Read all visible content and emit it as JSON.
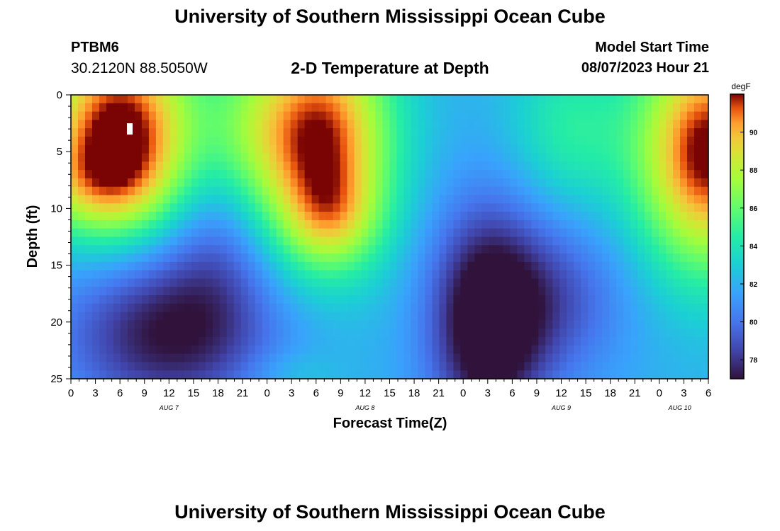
{
  "header": {
    "title": "University of Southern Mississippi Ocean Cube",
    "station_id": "PTBM6",
    "station_coords": "30.2120N  88.5050W",
    "chart_title": "2-D Temperature at Depth",
    "start_label": "Model Start Time",
    "start_value": "08/07/2023 Hour 21"
  },
  "footer": {
    "title": "University of Southern Mississippi Ocean Cube"
  },
  "chart_data": {
    "type": "heatmap",
    "title": "2-D Temperature at Depth",
    "xlabel": "Forecast Time(Z)",
    "ylabel": "Depth (ft)",
    "x_unit": "hours since Aug 7 00Z",
    "xlim": [
      0,
      78
    ],
    "ylim": [
      0,
      25
    ],
    "y_inverted": true,
    "x_ticks": [
      0,
      3,
      6,
      9,
      12,
      15,
      18,
      21,
      24,
      27,
      30,
      33,
      36,
      39,
      42,
      45,
      48,
      51,
      54,
      57,
      60,
      63,
      66,
      69,
      72,
      75,
      78
    ],
    "x_tick_labels": [
      "0",
      "3",
      "6",
      "9",
      "12",
      "15",
      "18",
      "21",
      "0",
      "3",
      "6",
      "9",
      "12",
      "15",
      "18",
      "21",
      "0",
      "3",
      "6",
      "9",
      "12",
      "15",
      "18",
      "21",
      "0",
      "3",
      "6"
    ],
    "y_ticks": [
      0,
      5,
      10,
      15,
      20,
      25
    ],
    "y_tick_labels": [
      "0",
      "5",
      "10",
      "15",
      "20",
      "25"
    ],
    "date_labels": [
      {
        "text": "AUG 7",
        "x": 12
      },
      {
        "text": "AUG 8",
        "x": 36
      },
      {
        "text": "AUG 9",
        "x": 60
      },
      {
        "text": "AUG 10",
        "x": 74.5
      }
    ],
    "colorbar": {
      "unit": "degF",
      "min": 77,
      "max": 92,
      "ticks": [
        78,
        80,
        82,
        84,
        86,
        88,
        90
      ],
      "tick_labels": [
        "78",
        "80",
        "82",
        "84",
        "86",
        "88",
        "90"
      ]
    },
    "marker": {
      "x": 7.2,
      "y": 3
    },
    "field_model": {
      "description": "approximate temperature (degF) field reconstructed from the image",
      "base": 82,
      "blobs": [
        {
          "x": 6,
          "y": 3,
          "amp": 10.5,
          "sx": 6.5,
          "sy": 6
        },
        {
          "x": 3,
          "y": 8,
          "amp": 3,
          "sx": 6,
          "sy": 3
        },
        {
          "x": 30.5,
          "y": 4,
          "amp": 10,
          "sx": 6,
          "sy": 7
        },
        {
          "x": 32,
          "y": 11,
          "amp": 3,
          "sx": 4,
          "sy": 3
        },
        {
          "x": 78,
          "y": 5,
          "amp": 10.5,
          "sx": 6,
          "sy": 7
        },
        {
          "x": 22,
          "y": 3,
          "amp": 2,
          "sx": 4,
          "sy": 5
        },
        {
          "x": 61,
          "y": 3,
          "amp": 2.5,
          "sx": 5,
          "sy": 5
        },
        {
          "x": 12,
          "y": 21,
          "amp": -5,
          "sx": 9,
          "sy": 5
        },
        {
          "x": 18,
          "y": 13,
          "amp": -2,
          "sx": 5,
          "sy": 5
        },
        {
          "x": 51,
          "y": 20,
          "amp": -6.5,
          "sx": 5,
          "sy": 7
        },
        {
          "x": 60,
          "y": 18,
          "amp": -2.5,
          "sx": 6,
          "sy": 5
        },
        {
          "x": 27,
          "y": 24.5,
          "amp": 1,
          "sx": 4,
          "sy": 1.5
        }
      ]
    }
  }
}
